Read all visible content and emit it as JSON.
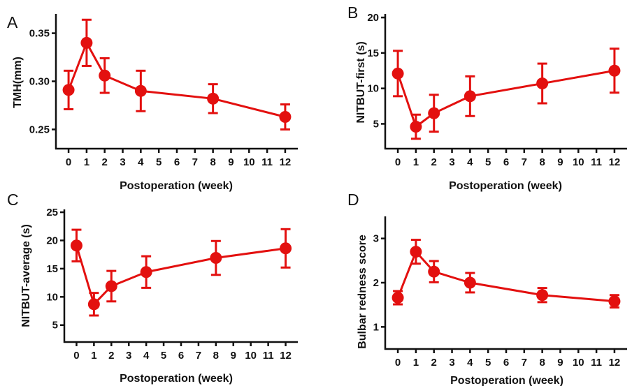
{
  "figure": {
    "colors": {
      "series": "#e3100f",
      "axis": "#111111"
    }
  },
  "chart_data": [
    {
      "panel_label": "A",
      "type": "line",
      "ylabel": "TMH(mm)",
      "xlabel": "Postoperation (week)",
      "x_ticks": [
        0,
        1,
        2,
        3,
        4,
        5,
        6,
        7,
        8,
        9,
        10,
        11,
        12
      ],
      "x_tick_labels": [
        "0",
        "1",
        "2",
        "3",
        "4",
        "5",
        "6",
        "7",
        "8",
        "9",
        "10",
        "11",
        "12"
      ],
      "y_ticks": [
        0.25,
        0.3,
        0.35
      ],
      "y_tick_labels": [
        "0.25",
        "0.30",
        "0.35"
      ],
      "ylim": [
        0.23,
        0.37
      ],
      "xlim": [
        -0.7,
        12.7
      ],
      "series": [
        {
          "x": [
            0,
            1,
            2,
            4,
            8,
            12
          ],
          "y": [
            0.291,
            0.34,
            0.306,
            0.29,
            0.282,
            0.263
          ],
          "error": [
            0.02,
            0.024,
            0.018,
            0.021,
            0.015,
            0.013
          ]
        }
      ]
    },
    {
      "panel_label": "B",
      "type": "line",
      "ylabel": "NITBUT-first (s)",
      "xlabel": "Postoperation (week)",
      "x_ticks": [
        0,
        1,
        2,
        3,
        4,
        5,
        6,
        7,
        8,
        9,
        10,
        11,
        12
      ],
      "x_tick_labels": [
        "0",
        "1",
        "2",
        "3",
        "4",
        "5",
        "6",
        "7",
        "8",
        "9",
        "10",
        "11",
        "12"
      ],
      "y_ticks": [
        5,
        10,
        15,
        20
      ],
      "y_tick_labels": [
        "5",
        "10",
        "15",
        "20"
      ],
      "ylim": [
        1.5,
        20.5
      ],
      "xlim": [
        -0.7,
        12.7
      ],
      "series": [
        {
          "x": [
            0,
            1,
            2,
            4,
            8,
            12
          ],
          "y": [
            12.1,
            4.6,
            6.5,
            8.9,
            10.7,
            12.5
          ],
          "error": [
            3.2,
            1.7,
            2.6,
            2.8,
            2.8,
            3.1
          ]
        }
      ]
    },
    {
      "panel_label": "C",
      "type": "line",
      "ylabel": "NITBUT-average (s)",
      "xlabel": "Postoperation (week)",
      "x_ticks": [
        0,
        1,
        2,
        3,
        4,
        5,
        6,
        7,
        8,
        9,
        10,
        11,
        12
      ],
      "x_tick_labels": [
        "0",
        "1",
        "2",
        "3",
        "4",
        "5",
        "6",
        "7",
        "8",
        "9",
        "10",
        "11",
        "12"
      ],
      "y_ticks": [
        5,
        10,
        15,
        20,
        25
      ],
      "y_tick_labels": [
        "5",
        "10",
        "15",
        "20",
        "25"
      ],
      "ylim": [
        2,
        25.5
      ],
      "xlim": [
        -0.7,
        12.7
      ],
      "series": [
        {
          "x": [
            0,
            1,
            2,
            4,
            8,
            12
          ],
          "y": [
            19.1,
            8.7,
            11.9,
            14.4,
            16.9,
            18.6
          ],
          "error": [
            2.8,
            2.0,
            2.7,
            2.8,
            3.0,
            3.4
          ]
        }
      ]
    },
    {
      "panel_label": "D",
      "type": "line",
      "ylabel": "Bulbar redness score",
      "xlabel": "Postoperation (week)",
      "x_ticks": [
        0,
        1,
        2,
        3,
        4,
        5,
        6,
        7,
        8,
        9,
        10,
        11,
        12
      ],
      "x_tick_labels": [
        "0",
        "1",
        "2",
        "3",
        "4",
        "5",
        "6",
        "7",
        "8",
        "9",
        "10",
        "11",
        "12"
      ],
      "y_ticks": [
        1,
        2,
        3
      ],
      "y_tick_labels": [
        "1",
        "2",
        "3"
      ],
      "ylim": [
        0.5,
        3.5
      ],
      "xlim": [
        -0.7,
        12.7
      ],
      "series": [
        {
          "x": [
            0,
            1,
            2,
            4,
            8,
            12
          ],
          "y": [
            1.66,
            2.7,
            2.25,
            2.0,
            1.72,
            1.58
          ],
          "error": [
            0.15,
            0.27,
            0.24,
            0.22,
            0.16,
            0.14
          ]
        }
      ]
    }
  ]
}
